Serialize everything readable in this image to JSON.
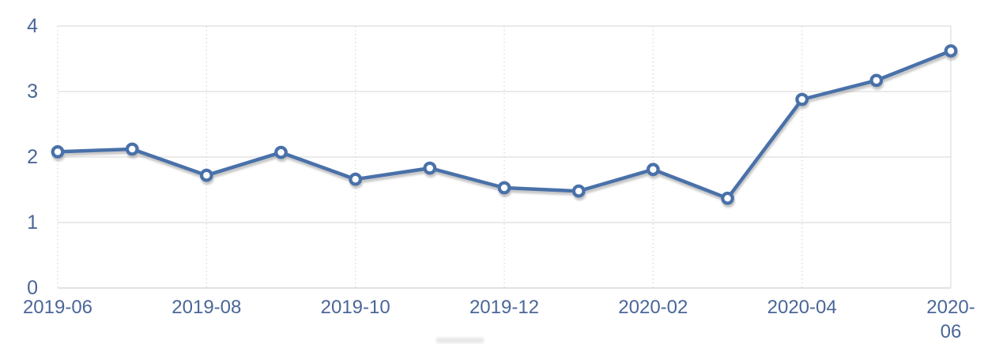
{
  "chart_data": {
    "type": "line",
    "title": "",
    "xlabel": "",
    "ylabel": "",
    "legend": "none",
    "marker": "circle-open",
    "grid": {
      "horizontal": "solid",
      "vertical": "dotted-at-labeled-ticks"
    },
    "x": [
      "2019-06",
      "2019-07",
      "2019-08",
      "2019-09",
      "2019-10",
      "2019-11",
      "2019-12",
      "2020-01",
      "2020-02",
      "2020-03",
      "2020-04",
      "2020-05",
      "2020-06"
    ],
    "series": [
      {
        "name": "value",
        "values": [
          2.08,
          2.12,
          1.72,
          2.07,
          1.66,
          1.83,
          1.53,
          1.48,
          1.81,
          1.37,
          2.88,
          3.17,
          3.62
        ]
      }
    ],
    "ylim": [
      0,
      4
    ],
    "yticks": [
      0,
      1,
      2,
      3,
      4
    ],
    "xticks": [
      {
        "label": "2019-06",
        "lines": [
          "2019-06"
        ],
        "index": 0
      },
      {
        "label": "2019-08",
        "lines": [
          "2019-08"
        ],
        "index": 2
      },
      {
        "label": "2019-10",
        "lines": [
          "2019-10"
        ],
        "index": 4
      },
      {
        "label": "2019-12",
        "lines": [
          "2019-12"
        ],
        "index": 6
      },
      {
        "label": "2020-02",
        "lines": [
          "2020-02"
        ],
        "index": 8
      },
      {
        "label": "2020-04",
        "lines": [
          "2020-04"
        ],
        "index": 10
      },
      {
        "label": "2020-06",
        "lines": [
          "2020-",
          "06"
        ],
        "index": 12
      }
    ]
  },
  "style": {
    "line_color": "#4A71A9",
    "marker_fill": "#FFFFFF",
    "axis_label_color": "#4A6699",
    "h_gridline_color": "#E4E4E4",
    "v_gridline_color": "#D9D9D9",
    "right_border_color": "#E0E0E0",
    "axis_line_color": "#D8D8D8",
    "background": "#FFFFFF"
  }
}
